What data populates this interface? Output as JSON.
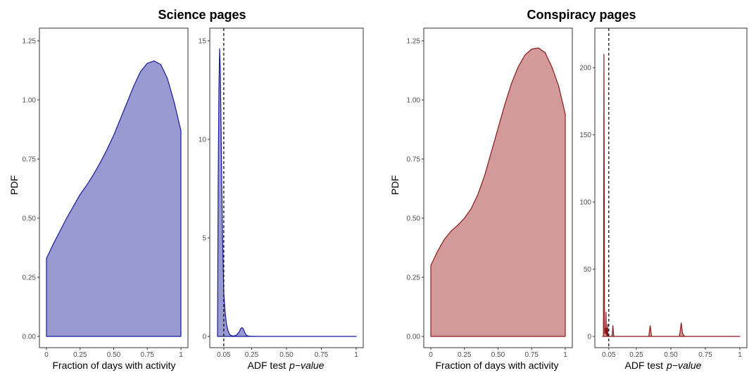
{
  "groups": [
    {
      "title": "Science pages"
    },
    {
      "title": "Conspiracy pages"
    }
  ],
  "colors": {
    "science_fill": "#9a9ad2",
    "science_line": "#1a1a9c",
    "conspiracy_fill": "#d29a9a",
    "conspiracy_line": "#8b1a1a",
    "frame": "#333333",
    "threshold_line": "#000000"
  },
  "chart_data": [
    {
      "type": "area",
      "group": "Science pages",
      "xlabel": "Fraction of days with activity",
      "ylabel": "PDF",
      "xlim": [
        0,
        1
      ],
      "ylim": [
        0,
        1.25
      ],
      "xticks": [
        {
          "v": 0,
          "label": "0"
        },
        {
          "v": 0.25,
          "label": "0.25"
        },
        {
          "v": 0.5,
          "label": "0.50"
        },
        {
          "v": 0.75,
          "label": "0.75"
        },
        {
          "v": 1,
          "label": "1"
        }
      ],
      "yticks": [
        {
          "v": 0,
          "label": "0.00"
        },
        {
          "v": 0.25,
          "label": "0.25"
        },
        {
          "v": 0.5,
          "label": "0.50"
        },
        {
          "v": 0.75,
          "label": "0.75"
        },
        {
          "v": 1,
          "label": "1.00"
        },
        {
          "v": 1.25,
          "label": "1.25"
        }
      ],
      "x": [
        0,
        0.05,
        0.1,
        0.15,
        0.2,
        0.25,
        0.3,
        0.35,
        0.4,
        0.45,
        0.5,
        0.55,
        0.6,
        0.65,
        0.7,
        0.75,
        0.8,
        0.85,
        0.9,
        0.95,
        1.0
      ],
      "y": [
        0.33,
        0.39,
        0.445,
        0.5,
        0.55,
        0.6,
        0.64,
        0.685,
        0.735,
        0.79,
        0.85,
        0.92,
        0.99,
        1.06,
        1.12,
        1.155,
        1.165,
        1.15,
        1.09,
        0.99,
        0.87
      ],
      "grid": false
    },
    {
      "type": "area",
      "group": "Science pages",
      "xlabel": "ADF test",
      "xlabel_italic": "p−value",
      "ylabel": "",
      "xlim": [
        0,
        1
      ],
      "ylim": [
        0,
        15
      ],
      "xticks": [
        {
          "v": 0.05,
          "label": "0.05"
        },
        {
          "v": 0.25,
          "label": "0.25"
        },
        {
          "v": 0.5,
          "label": "0.50"
        },
        {
          "v": 0.75,
          "label": "0.75"
        },
        {
          "v": 1,
          "label": "1"
        }
      ],
      "yticks": [
        {
          "v": 0,
          "label": "0"
        },
        {
          "v": 5,
          "label": "5"
        },
        {
          "v": 10,
          "label": "10"
        },
        {
          "v": 15,
          "label": "15"
        }
      ],
      "x": [
        0.005,
        0.01,
        0.015,
        0.02,
        0.025,
        0.03,
        0.035,
        0.04,
        0.05,
        0.06,
        0.07,
        0.08,
        0.09,
        0.1,
        0.12,
        0.14,
        0.16,
        0.17,
        0.18,
        0.19,
        0.2,
        0.21,
        0.22,
        0.24,
        0.3,
        0.5,
        1.0
      ],
      "y": [
        0,
        8.0,
        12.5,
        14.6,
        13.5,
        11.0,
        8.0,
        5.5,
        2.2,
        1.2,
        0.6,
        0.3,
        0.12,
        0.05,
        0.02,
        0.06,
        0.22,
        0.38,
        0.45,
        0.38,
        0.2,
        0.08,
        0.03,
        0.01,
        0,
        0,
        0
      ],
      "reference_line": {
        "x": 0.05,
        "style": "dashed"
      },
      "grid": false
    },
    {
      "type": "area",
      "group": "Conspiracy pages",
      "xlabel": "Fraction of days with activity",
      "ylabel": "PDF",
      "xlim": [
        0,
        1
      ],
      "ylim": [
        0,
        1.25
      ],
      "xticks": [
        {
          "v": 0,
          "label": "0"
        },
        {
          "v": 0.25,
          "label": "0.25"
        },
        {
          "v": 0.5,
          "label": "0.50"
        },
        {
          "v": 0.75,
          "label": "0.75"
        },
        {
          "v": 1,
          "label": "1"
        }
      ],
      "yticks": [
        {
          "v": 0,
          "label": "0.00"
        },
        {
          "v": 0.25,
          "label": "0.25"
        },
        {
          "v": 0.5,
          "label": "0.50"
        },
        {
          "v": 0.75,
          "label": "0.75"
        },
        {
          "v": 1,
          "label": "1.00"
        },
        {
          "v": 1.25,
          "label": "1.25"
        }
      ],
      "x": [
        0,
        0.05,
        0.1,
        0.15,
        0.2,
        0.25,
        0.3,
        0.35,
        0.4,
        0.45,
        0.5,
        0.55,
        0.6,
        0.65,
        0.7,
        0.75,
        0.8,
        0.85,
        0.9,
        0.95,
        1.0
      ],
      "y": [
        0.3,
        0.36,
        0.41,
        0.445,
        0.47,
        0.5,
        0.54,
        0.6,
        0.68,
        0.78,
        0.88,
        0.98,
        1.07,
        1.14,
        1.19,
        1.215,
        1.22,
        1.2,
        1.14,
        1.06,
        0.94
      ],
      "grid": false
    },
    {
      "type": "area",
      "group": "Conspiracy pages",
      "xlabel": "ADF test",
      "xlabel_italic": "p−value",
      "ylabel": "",
      "xlim": [
        0,
        1
      ],
      "ylim": [
        0,
        220
      ],
      "xticks": [
        {
          "v": 0.05,
          "label": "0.05"
        },
        {
          "v": 0.25,
          "label": "0.25"
        },
        {
          "v": 0.5,
          "label": "0.50"
        },
        {
          "v": 0.75,
          "label": "0.75"
        },
        {
          "v": 1,
          "label": "1"
        }
      ],
      "yticks": [
        {
          "v": 0,
          "label": "0"
        },
        {
          "v": 50,
          "label": "50"
        },
        {
          "v": 100,
          "label": "100"
        },
        {
          "v": 150,
          "label": "150"
        },
        {
          "v": 200,
          "label": "200"
        }
      ],
      "x": [
        0.005,
        0.011,
        0.013,
        0.015,
        0.017,
        0.019,
        0.021,
        0.023,
        0.025,
        0.028,
        0.03,
        0.032,
        0.034,
        0.036,
        0.038,
        0.04,
        0.042,
        0.044,
        0.046,
        0.048,
        0.05,
        0.07,
        0.075,
        0.08,
        0.085,
        0.09,
        0.3,
        0.34,
        0.35,
        0.36,
        0.4,
        0.56,
        0.565,
        0.575,
        0.585,
        0.6,
        1.0
      ],
      "y": [
        0,
        0,
        80,
        210,
        120,
        8,
        2,
        6,
        2,
        5,
        18,
        3,
        1,
        6,
        1,
        0,
        9,
        1,
        0,
        0,
        0,
        0,
        1,
        8,
        1,
        0,
        0,
        0,
        8,
        0,
        0,
        0,
        2,
        10,
        2,
        0,
        0
      ],
      "reference_line": {
        "x": 0.05,
        "style": "dashed"
      },
      "grid": false
    }
  ]
}
